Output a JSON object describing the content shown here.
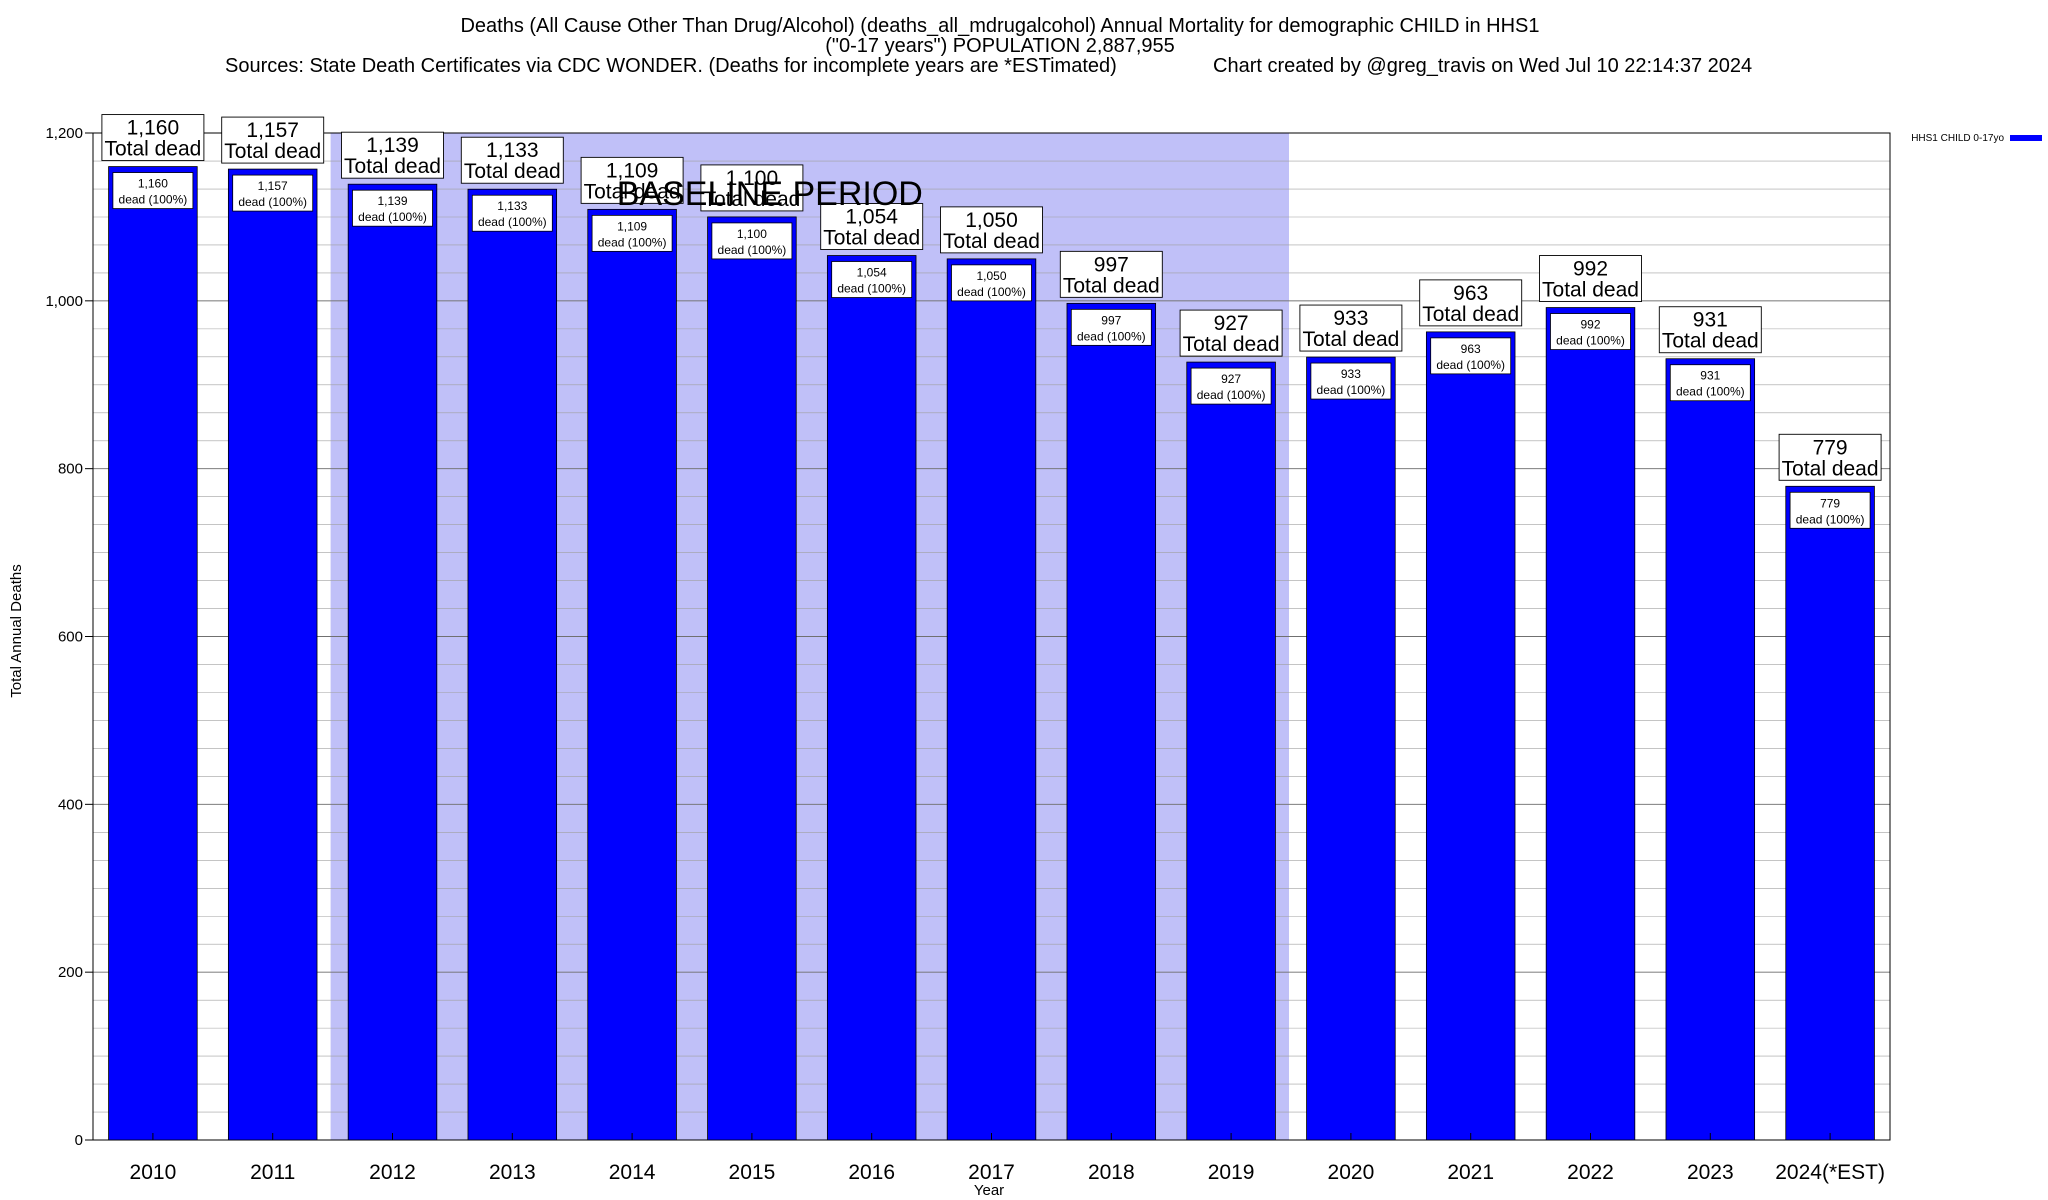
{
  "chart_data": {
    "type": "bar",
    "title_lines": [
      "Deaths (All Cause Other Than Drug/Alcohol) (deaths_all_mdrugalcohol) Annual Mortality for demographic CHILD in HHS1",
      "(\"0-17 years\") POPULATION 2,887,955"
    ],
    "sources": "Sources: State Death Certificates via CDC WONDER. (Deaths for incomplete years are *ESTimated)",
    "credit": "Chart created by @greg_travis on Wed Jul 10 22:14:37 2024",
    "xlabel": "Year",
    "ylabel": "Total Annual Deaths",
    "ylim": [
      0,
      1200
    ],
    "yticks": [
      0,
      200,
      400,
      600,
      800,
      1000,
      1200
    ],
    "ytick_labels": [
      "0",
      "200",
      "400",
      "600",
      "800",
      "1,000",
      "1,200"
    ],
    "categories": [
      "2010",
      "2011",
      "2012",
      "2013",
      "2014",
      "2015",
      "2016",
      "2017",
      "2018",
      "2019",
      "2020",
      "2021",
      "2022",
      "2023",
      "2024(*EST)"
    ],
    "series": [
      {
        "name": "HHS1 CHILD 0-17yo",
        "values": [
          1160,
          1157,
          1139,
          1133,
          1109,
          1100,
          1054,
          1050,
          997,
          927,
          933,
          963,
          992,
          931,
          779
        ]
      }
    ],
    "value_labels": [
      "1,160",
      "1,157",
      "1,139",
      "1,133",
      "1,109",
      "1,100",
      "1,054",
      "1,050",
      "997",
      "927",
      "933",
      "963",
      "992",
      "931",
      "779"
    ],
    "top_label_suffix": "Total dead",
    "inner_label_suffix": "dead (100%)",
    "baseline_period": {
      "label": "BASELINE PERIOD",
      "start_category": "2012",
      "end_category": "2019"
    },
    "legend_placement": "top-right",
    "grid": true,
    "colors": {
      "bar": "#0000ff",
      "baseline_shade": "#c0c0f8",
      "gridline": "#a0a0a0"
    }
  }
}
